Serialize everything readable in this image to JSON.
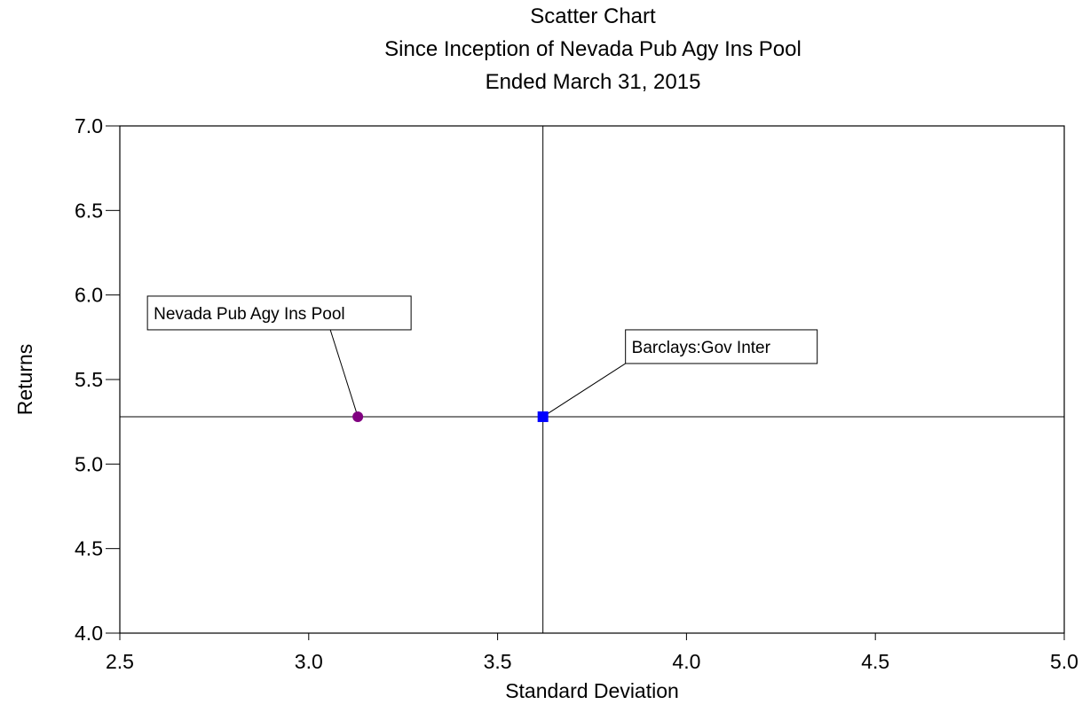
{
  "chart_data": {
    "type": "scatter",
    "title": [
      "Scatter Chart",
      "Since Inception of Nevada Pub Agy Ins Pool",
      "Ended March 31, 2015"
    ],
    "xlabel": "Standard Deviation",
    "ylabel": "Returns",
    "xlim": [
      2.5,
      5.0
    ],
    "ylim": [
      4.0,
      7.0
    ],
    "xticks": [
      "2.5",
      "3.0",
      "3.5",
      "4.0",
      "4.5",
      "5.0"
    ],
    "yticks": [
      "4.0",
      "4.5",
      "5.0",
      "5.5",
      "6.0",
      "6.5",
      "7.0"
    ],
    "grid": false,
    "reference_lines": {
      "x": 3.62,
      "y": 5.28
    },
    "points": [
      {
        "name": "Nevada Pub Agy Ins Pool",
        "x": 3.13,
        "y": 5.28,
        "marker": "circle",
        "color": "#800080"
      },
      {
        "name": "Barclays:Gov Inter",
        "x": 3.62,
        "y": 5.28,
        "marker": "square",
        "color": "#0000ff"
      }
    ]
  }
}
